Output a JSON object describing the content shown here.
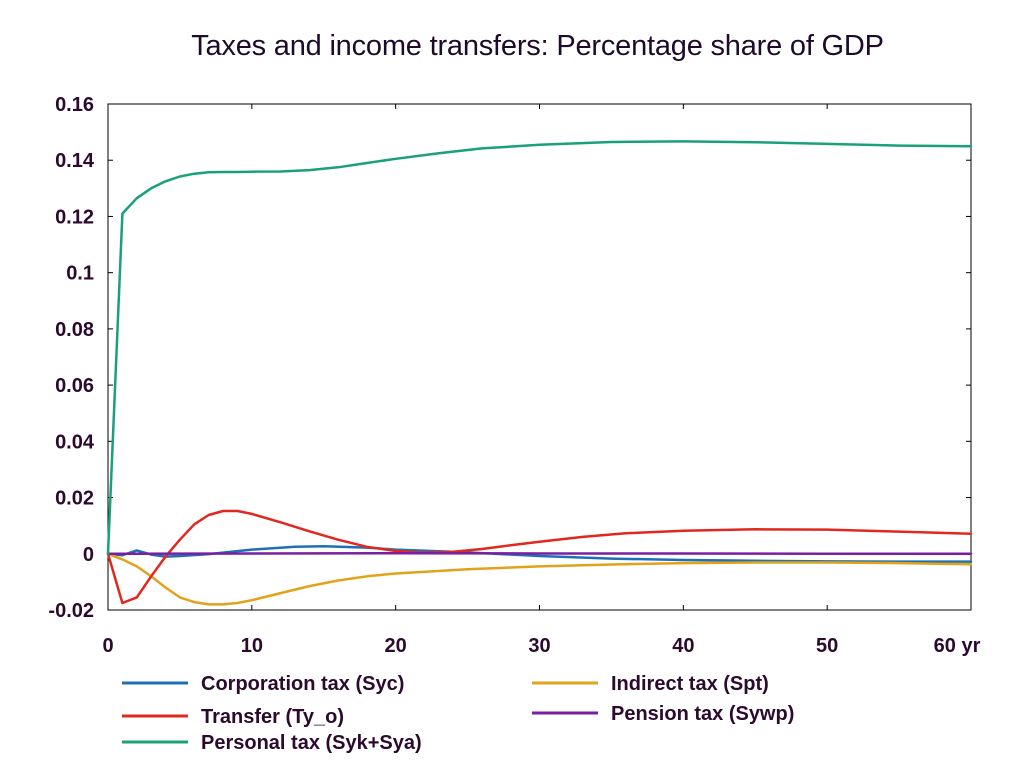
{
  "chart_data": {
    "type": "line",
    "title": "Taxes and income transfers: Percentage share of GDP",
    "xlabel": "",
    "ylabel": "",
    "x_unit_label": "yr",
    "xlim": [
      0,
      60
    ],
    "ylim": [
      -0.02,
      0.16
    ],
    "x_ticks": [
      "0",
      "10",
      "20",
      "30",
      "40",
      "50",
      "60 yr"
    ],
    "y_ticks": [
      "-0.02",
      "0",
      "0.02",
      "0.04",
      "0.06",
      "0.08",
      "0.1",
      "0.12",
      "0.14",
      "0.16"
    ],
    "x_tick_values": [
      0,
      10,
      20,
      30,
      40,
      50,
      60
    ],
    "y_tick_values": [
      -0.02,
      0,
      0.02,
      0.04,
      0.06,
      0.08,
      0.1,
      0.12,
      0.14,
      0.16
    ],
    "grid": false,
    "legend_position": "bottom",
    "series": [
      {
        "name": "Corporation tax (Syc)",
        "color": "#1f6fb4",
        "points": [
          [
            0,
            0
          ],
          [
            1,
            -0.0005
          ],
          [
            2,
            0.0012
          ],
          [
            3,
            -0.0003
          ],
          [
            4,
            -0.001
          ],
          [
            5,
            -0.0008
          ],
          [
            7,
            -0.0001
          ],
          [
            10,
            0.0015
          ],
          [
            13,
            0.0025
          ],
          [
            15,
            0.0027
          ],
          [
            18,
            0.0022
          ],
          [
            20,
            0.0015
          ],
          [
            25,
            0.0005
          ],
          [
            30,
            -0.0008
          ],
          [
            35,
            -0.0017
          ],
          [
            40,
            -0.0022
          ],
          [
            45,
            -0.0025
          ],
          [
            50,
            -0.0027
          ],
          [
            55,
            -0.0028
          ],
          [
            60,
            -0.0028
          ]
        ]
      },
      {
        "name": "Indirect tax (Spt)",
        "color": "#e0a31a",
        "points": [
          [
            0,
            0
          ],
          [
            1,
            -0.002
          ],
          [
            2,
            -0.0045
          ],
          [
            3,
            -0.008
          ],
          [
            4,
            -0.012
          ],
          [
            5,
            -0.0155
          ],
          [
            6,
            -0.0172
          ],
          [
            7,
            -0.018
          ],
          [
            8,
            -0.018
          ],
          [
            9,
            -0.0175
          ],
          [
            10,
            -0.0165
          ],
          [
            12,
            -0.014
          ],
          [
            14,
            -0.0115
          ],
          [
            16,
            -0.0095
          ],
          [
            18,
            -0.008
          ],
          [
            20,
            -0.007
          ],
          [
            25,
            -0.0055
          ],
          [
            30,
            -0.0045
          ],
          [
            35,
            -0.0038
          ],
          [
            40,
            -0.0033
          ],
          [
            45,
            -0.0031
          ],
          [
            50,
            -0.0031
          ],
          [
            55,
            -0.0033
          ],
          [
            60,
            -0.0037
          ]
        ]
      },
      {
        "name": "Transfer (Ty_o)",
        "color": "#e0281e",
        "points": [
          [
            0,
            0
          ],
          [
            1,
            -0.0175
          ],
          [
            2,
            -0.0155
          ],
          [
            3,
            -0.008
          ],
          [
            4,
            -0.001
          ],
          [
            5,
            0.005
          ],
          [
            6,
            0.0105
          ],
          [
            7,
            0.0138
          ],
          [
            8,
            0.0152
          ],
          [
            9,
            0.0152
          ],
          [
            10,
            0.0142
          ],
          [
            12,
            0.0112
          ],
          [
            14,
            0.008
          ],
          [
            16,
            0.005
          ],
          [
            18,
            0.0025
          ],
          [
            20,
            0.001
          ],
          [
            22,
            0.0004
          ],
          [
            24,
            0.0007
          ],
          [
            26,
            0.0017
          ],
          [
            28,
            0.003
          ],
          [
            30,
            0.0043
          ],
          [
            33,
            0.006
          ],
          [
            36,
            0.0073
          ],
          [
            40,
            0.0082
          ],
          [
            45,
            0.0087
          ],
          [
            50,
            0.0086
          ],
          [
            55,
            0.0079
          ],
          [
            60,
            0.0071
          ]
        ]
      },
      {
        "name": "Pension tax (Sywp)",
        "color": "#7a1fa2",
        "points": [
          [
            0,
            0
          ],
          [
            10,
            0.0001
          ],
          [
            20,
            0.0002
          ],
          [
            30,
            0.0001
          ],
          [
            40,
            0.0001
          ],
          [
            50,
            0.0
          ],
          [
            60,
            0.0
          ]
        ]
      },
      {
        "name": "Personal tax (Syk+Sya)",
        "color": "#1aa07a",
        "points": [
          [
            0,
            0
          ],
          [
            1,
            0.121
          ],
          [
            2,
            0.1265
          ],
          [
            3,
            0.13
          ],
          [
            4,
            0.1325
          ],
          [
            5,
            0.1342
          ],
          [
            6,
            0.1352
          ],
          [
            7,
            0.1357
          ],
          [
            8,
            0.1358
          ],
          [
            9,
            0.1358
          ],
          [
            10,
            0.1359
          ],
          [
            12,
            0.136
          ],
          [
            14,
            0.1365
          ],
          [
            16,
            0.1375
          ],
          [
            18,
            0.139
          ],
          [
            20,
            0.1405
          ],
          [
            23,
            0.1425
          ],
          [
            26,
            0.1442
          ],
          [
            30,
            0.1455
          ],
          [
            35,
            0.1465
          ],
          [
            40,
            0.1467
          ],
          [
            45,
            0.1464
          ],
          [
            50,
            0.1458
          ],
          [
            55,
            0.1452
          ],
          [
            60,
            0.145
          ]
        ]
      }
    ]
  },
  "legend": {
    "left": [
      "Corporation tax (Syc)",
      "Transfer (Ty_o)",
      "Personal tax (Syk+Sya)"
    ],
    "right": [
      "Indirect tax (Spt)",
      "Pension tax (Sywp)"
    ]
  }
}
